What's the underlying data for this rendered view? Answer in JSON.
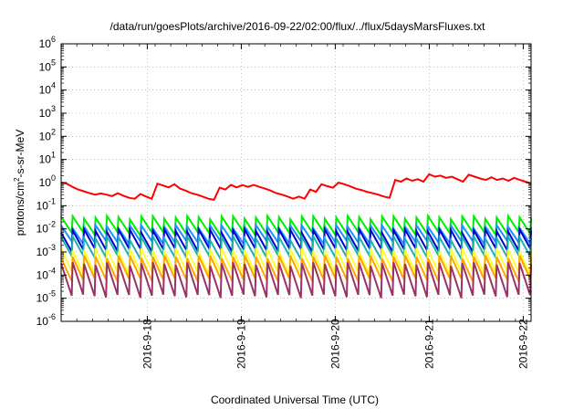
{
  "chart_data": {
    "type": "line",
    "title": "/data/run/goesPlots/archive/2016-09-22/02:00/flux/../flux/5daysMarsFluxes.txt",
    "xlabel": "Coordinated Universal Time (UTC)",
    "ylabel": {
      "base": "protons/cm",
      "sup": "2",
      "rest": "-s-sr-MeV"
    },
    "y_scale": "log",
    "ylim": [
      1e-06,
      1000000.0
    ],
    "y_ticks": [
      {
        "base": "10",
        "exp": "-6"
      },
      {
        "base": "10",
        "exp": "-5"
      },
      {
        "base": "10",
        "exp": "-4"
      },
      {
        "base": "10",
        "exp": "-3"
      },
      {
        "base": "10",
        "exp": "-2"
      },
      {
        "base": "10",
        "exp": "-1"
      },
      {
        "base": "10",
        "exp": "0"
      },
      {
        "base": "10",
        "exp": "1"
      },
      {
        "base": "10",
        "exp": "2"
      },
      {
        "base": "10",
        "exp": "3"
      },
      {
        "base": "10",
        "exp": "4"
      },
      {
        "base": "10",
        "exp": "5"
      },
      {
        "base": "10",
        "exp": "6"
      }
    ],
    "xlim": [
      "2016-09-17 02:00",
      "2016-09-22 02:00"
    ],
    "x_ticks": [
      "2016-9-18",
      "2016-9-19",
      "2016-9-20",
      "2016-9-21",
      "2016-9-22"
    ],
    "grid": true,
    "legend": "none",
    "series": [
      {
        "color": "#ff0000",
        "values": [
          1.0,
          0.9,
          0.65,
          0.5,
          0.42,
          0.35,
          0.3,
          0.34,
          0.3,
          0.26,
          0.35,
          0.27,
          0.22,
          0.2,
          0.32,
          0.25,
          0.2,
          0.9,
          0.75,
          0.62,
          0.85,
          0.55,
          0.45,
          0.35,
          0.3,
          0.25,
          0.2,
          0.18,
          0.6,
          0.5,
          0.8,
          0.62,
          0.78,
          0.65,
          0.8,
          0.65,
          0.55,
          0.45,
          0.35,
          0.3,
          0.25,
          0.2,
          0.25,
          0.2,
          0.5,
          0.4,
          0.85,
          0.7,
          0.6,
          1.0,
          0.85,
          0.7,
          0.55,
          0.48,
          0.4,
          0.35,
          0.3,
          0.25,
          0.22,
          1.3,
          1.1,
          1.5,
          1.2,
          1.4,
          1.1,
          2.3,
          1.8,
          2.0,
          1.6,
          1.8,
          1.4,
          1.1,
          2.2,
          1.8,
          1.5,
          1.3,
          1.7,
          1.3,
          1.5,
          1.2,
          1.6,
          1.3,
          1.1,
          0.9
        ]
      },
      {
        "color": "#00ee00",
        "peak": 0.03,
        "trough": 0.006
      },
      {
        "color": "#1e90ff",
        "peak": 0.012,
        "trough": 0.0025
      },
      {
        "color": "#0000cc",
        "peak": 0.008,
        "trough": 0.0012
      },
      {
        "color": "#20b2aa",
        "peak": 0.004,
        "trough": 0.0006
      },
      {
        "color": "#ffff33",
        "peak": 0.0012,
        "trough": 0.00012
      },
      {
        "color": "#ffa500",
        "peak": 0.0006,
        "trough": 6e-05
      },
      {
        "color": "#993366",
        "peak": 0.0003,
        "trough": 1.2e-05
      }
    ]
  }
}
